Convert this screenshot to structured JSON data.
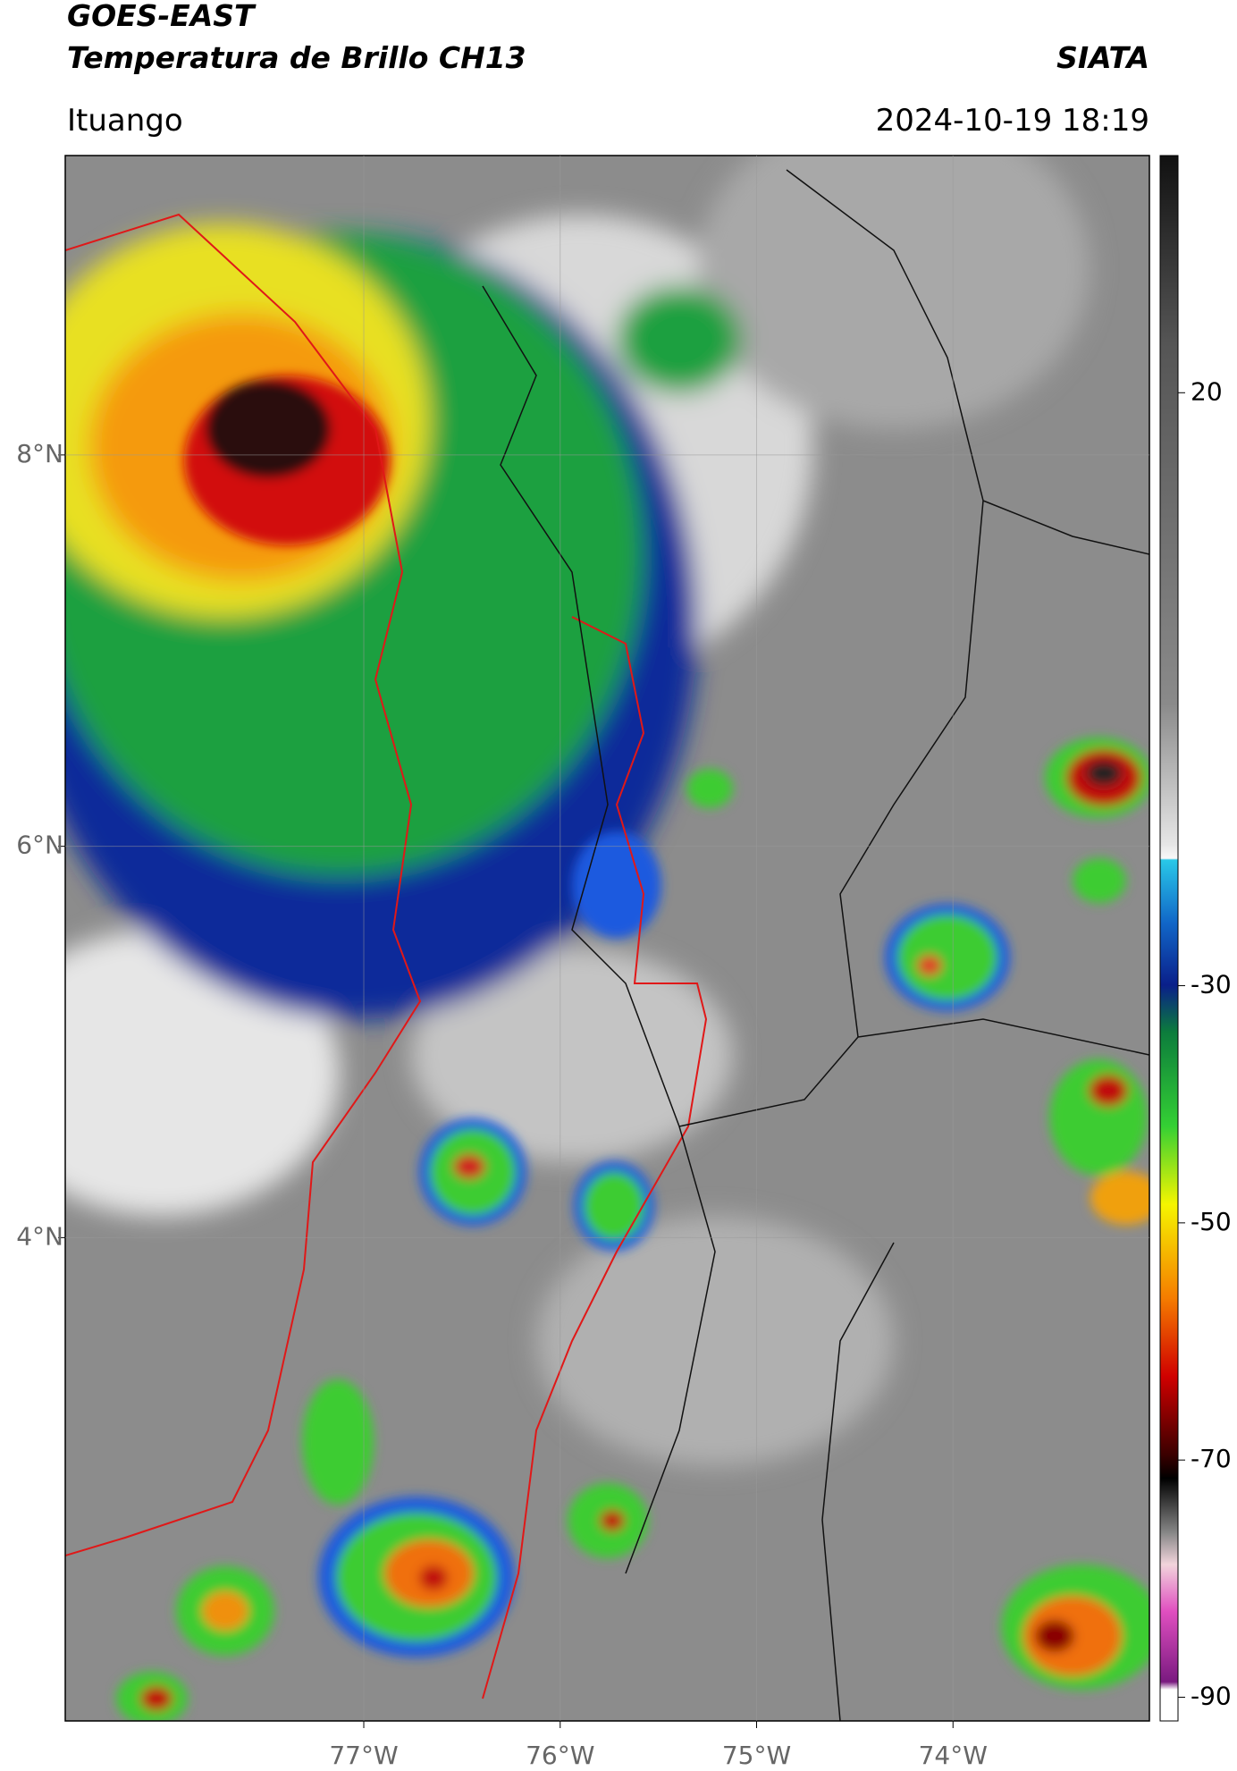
{
  "header": {
    "satellite": "GOES-EAST",
    "product": "Temperatura de Brillo CH13",
    "source": "SIATA",
    "location": "Ituango",
    "datetime": "2024-10-19 18:19"
  },
  "map": {
    "xlim": [
      -78.52,
      -73.0
    ],
    "ylim": [
      1.53,
      9.53
    ],
    "xticks": [
      {
        "value": -77,
        "label": "77°W"
      },
      {
        "value": -76,
        "label": "76°W"
      },
      {
        "value": -75,
        "label": "75°W"
      },
      {
        "value": -74,
        "label": "74°W"
      }
    ],
    "yticks": [
      {
        "value": 4,
        "label": "4°N"
      },
      {
        "value": 6,
        "label": "6°N"
      },
      {
        "value": 8,
        "label": "8°N"
      }
    ]
  },
  "colorbar": {
    "lim": [
      -92,
      40
    ],
    "ticks": [
      20,
      -30,
      -50,
      -70,
      -90
    ]
  }
}
